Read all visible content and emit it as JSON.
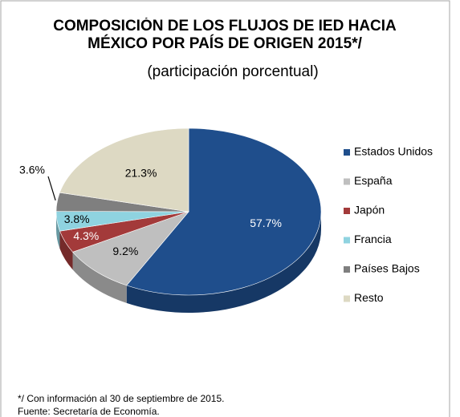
{
  "chart_data": {
    "type": "pie3d",
    "title": "COMPOSICIÓN DE LOS FLUJOS DE IED HACIA MÉXICO POR PAÍS DE ORIGEN 2015*/",
    "subtitle": "(participación porcentual)",
    "categories": [
      "Estados Unidos",
      "España",
      "Japón",
      "Francia",
      "Países Bajos",
      "Resto"
    ],
    "values": [
      57.7,
      9.2,
      4.3,
      3.8,
      3.6,
      21.3
    ],
    "value_labels": [
      "57.7%",
      "9.2%",
      "4.3%",
      "3.8%",
      "3.6%",
      "21.3%"
    ],
    "colors": [
      "#1f4e8c",
      "#bfbfbf",
      "#a33a3a",
      "#8fd3e0",
      "#7f7f7f",
      "#ddd9c3"
    ],
    "legend": "right",
    "notes": [
      "*/ Con información al 30 de septiembre de 2015.",
      "Fuente: Secretaría de Economía."
    ]
  }
}
